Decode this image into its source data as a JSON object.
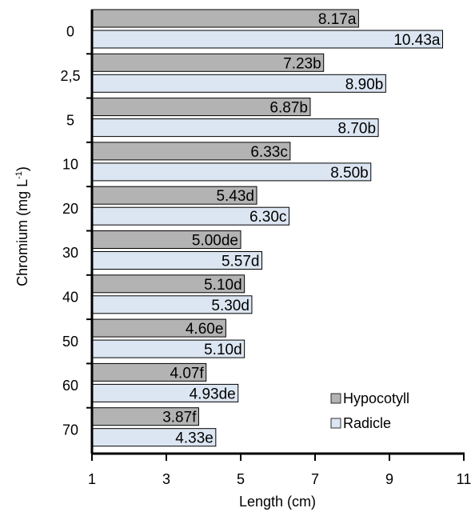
{
  "chart_data": {
    "type": "bar",
    "orientation": "horizontal",
    "categories": [
      "0",
      "2,5",
      "5",
      "10",
      "20",
      "30",
      "40",
      "50",
      "60",
      "70"
    ],
    "series": [
      {
        "name": "Hypocotyll",
        "color": "#b3b3b3",
        "values": [
          8.17,
          7.23,
          6.87,
          6.33,
          5.43,
          5.0,
          5.1,
          4.6,
          4.07,
          3.87
        ],
        "labels": [
          "8.17a",
          "7.23b",
          "6.87b",
          "6.33c",
          "5.43d",
          "5.00de",
          "5.10d",
          "4.60e",
          "4.07f",
          "3.87f"
        ]
      },
      {
        "name": "Radicle",
        "color": "#dce6f2",
        "values": [
          10.43,
          8.9,
          8.7,
          8.5,
          6.3,
          5.57,
          5.3,
          5.1,
          4.93,
          4.33
        ],
        "labels": [
          "10.43a",
          "8.90b",
          "8.70b",
          "8.50b",
          "6.30c",
          "5.57d",
          "5.30d",
          "5.10d",
          "4.93de",
          "4.33e"
        ]
      }
    ],
    "xlabel": "Length (cm)",
    "ylabel_main": "Chromium (mg L",
    "ylabel_sup": "-1",
    "ylabel_end": ")",
    "xlim": [
      1,
      11
    ],
    "xticks": [
      "1",
      "3",
      "5",
      "7",
      "9",
      "11"
    ],
    "legend_position": "bottom-right",
    "grid": false
  }
}
